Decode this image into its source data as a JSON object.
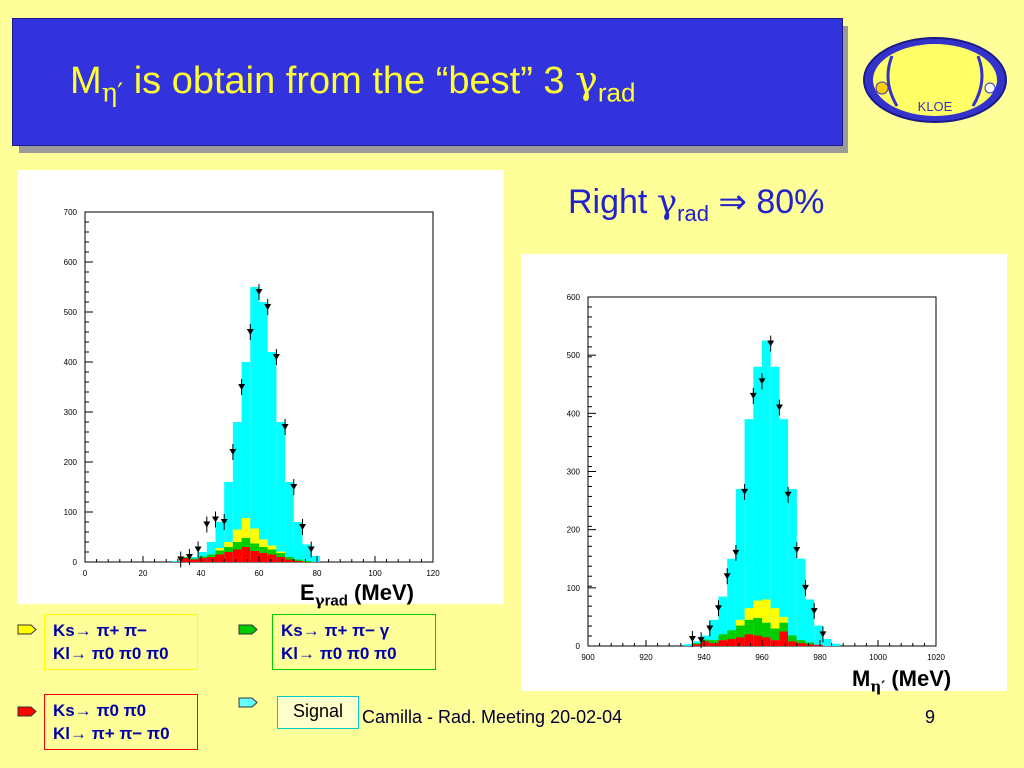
{
  "slide": {
    "title": {
      "main": "M",
      "sub": "η′",
      "rest": " is obtain from the “best” 3 ",
      "greek": "γ",
      "greek_sub": "rad"
    },
    "claim": {
      "text": "Right ",
      "greek": "γ",
      "sub": "rad",
      "arrow": " ⇒ ",
      "value": "80%"
    },
    "left_plot_caption": {
      "main": "E",
      "greek": "γ",
      "sub": "rad",
      "unit": " (MeV)"
    },
    "right_plot_caption": {
      "main": "M",
      "sub": "η′",
      "unit": " (MeV)"
    },
    "legends": [
      {
        "line1": "Ks→ π+ π−",
        "line2": "Kl→ π0 π0 π0",
        "color": "#ffff00"
      },
      {
        "line1": "Ks→ π+ π− γ",
        "line2": "Kl→ π0 π0 π0",
        "color": "#00cc00"
      },
      {
        "line1": "Ks→ π0 π0",
        "line2": "Kl→ π+ π− π0",
        "color": "#ff0000"
      },
      {
        "line1": "Signal",
        "color": "#66ffff"
      }
    ],
    "footer": {
      "author": "Camilla - Rad. Meeting 20-02-04",
      "page": "9"
    },
    "logo_text": "KLOE"
  },
  "chart_data": [
    {
      "type": "bar",
      "title": "",
      "xlabel": "Eγrad (MeV)",
      "ylabel": "",
      "xlim": [
        0,
        120
      ],
      "ylim": [
        0,
        700
      ],
      "xticks": [
        0,
        20,
        40,
        60,
        80,
        100,
        120
      ],
      "yticks": [
        0,
        100,
        200,
        300,
        400,
        500,
        600,
        700
      ],
      "bin_edges": [
        30,
        33,
        36,
        39,
        42,
        45,
        48,
        51,
        54,
        57,
        60,
        63,
        66,
        69,
        72,
        75,
        78,
        81
      ],
      "series": [
        {
          "name": "Signal",
          "values": [
            2,
            4,
            10,
            20,
            40,
            80,
            160,
            280,
            400,
            550,
            520,
            420,
            280,
            160,
            80,
            35,
            12
          ]
        },
        {
          "name": "Ks→ π+ π− / Kl→ π0 π0 π0",
          "values": [
            0,
            0,
            0,
            0,
            0,
            5,
            10,
            25,
            40,
            30,
            15,
            8,
            3,
            0,
            0,
            0,
            0
          ]
        },
        {
          "name": "Ks→ π+ π− γ / Kl→ π0 π0 π0",
          "values": [
            0,
            2,
            2,
            3,
            5,
            8,
            10,
            15,
            18,
            15,
            12,
            10,
            8,
            5,
            3,
            2,
            0
          ]
        },
        {
          "name": "Ks→ π0 π0 / Kl→ π+ π− π0",
          "values": [
            0,
            8,
            5,
            8,
            10,
            15,
            20,
            25,
            30,
            22,
            18,
            15,
            10,
            5,
            2,
            0,
            0
          ]
        }
      ],
      "data_points_x": [
        33,
        36,
        39,
        42,
        45,
        48,
        51,
        54,
        57,
        60,
        63,
        66,
        69,
        72,
        75,
        78
      ],
      "data_points_y": [
        5,
        10,
        25,
        75,
        85,
        80,
        220,
        350,
        460,
        540,
        510,
        410,
        270,
        150,
        70,
        25
      ]
    },
    {
      "type": "bar",
      "title": "",
      "xlabel": "Mη′ (MeV)",
      "ylabel": "",
      "xlim": [
        900,
        1020
      ],
      "ylim": [
        0,
        600
      ],
      "xticks": [
        900,
        920,
        940,
        960,
        980,
        1000,
        1020
      ],
      "yticks": [
        0,
        100,
        200,
        300,
        400,
        500,
        600
      ],
      "bin_edges": [
        933,
        936,
        939,
        942,
        945,
        948,
        951,
        954,
        957,
        960,
        963,
        966,
        969,
        972,
        975,
        978,
        981,
        984,
        987
      ],
      "series": [
        {
          "name": "Signal",
          "values": [
            3,
            8,
            18,
            45,
            85,
            150,
            270,
            390,
            480,
            525,
            480,
            390,
            270,
            150,
            80,
            35,
            12,
            4
          ]
        },
        {
          "name": "Ks→ π+ π− / Kl→ π0 π0 π0",
          "values": [
            0,
            0,
            0,
            0,
            0,
            0,
            10,
            20,
            30,
            40,
            35,
            10,
            0,
            0,
            0,
            0,
            0,
            0
          ]
        },
        {
          "name": "Ks→ π+ π− γ / Kl→ π0 π0 π0",
          "values": [
            0,
            2,
            3,
            5,
            10,
            15,
            20,
            25,
            30,
            25,
            20,
            15,
            10,
            5,
            3,
            0,
            0,
            0
          ]
        },
        {
          "name": "Ks→ π0 π0 / Kl→ π+ π− π0",
          "values": [
            0,
            3,
            8,
            5,
            10,
            12,
            15,
            20,
            18,
            15,
            10,
            25,
            8,
            5,
            3,
            2,
            0,
            0
          ]
        }
      ],
      "data_points_x": [
        936,
        939,
        942,
        945,
        948,
        951,
        954,
        957,
        960,
        963,
        966,
        969,
        972,
        975,
        978,
        981
      ],
      "data_points_y": [
        12,
        10,
        30,
        65,
        120,
        160,
        265,
        430,
        455,
        520,
        410,
        260,
        165,
        100,
        60,
        20
      ]
    }
  ]
}
